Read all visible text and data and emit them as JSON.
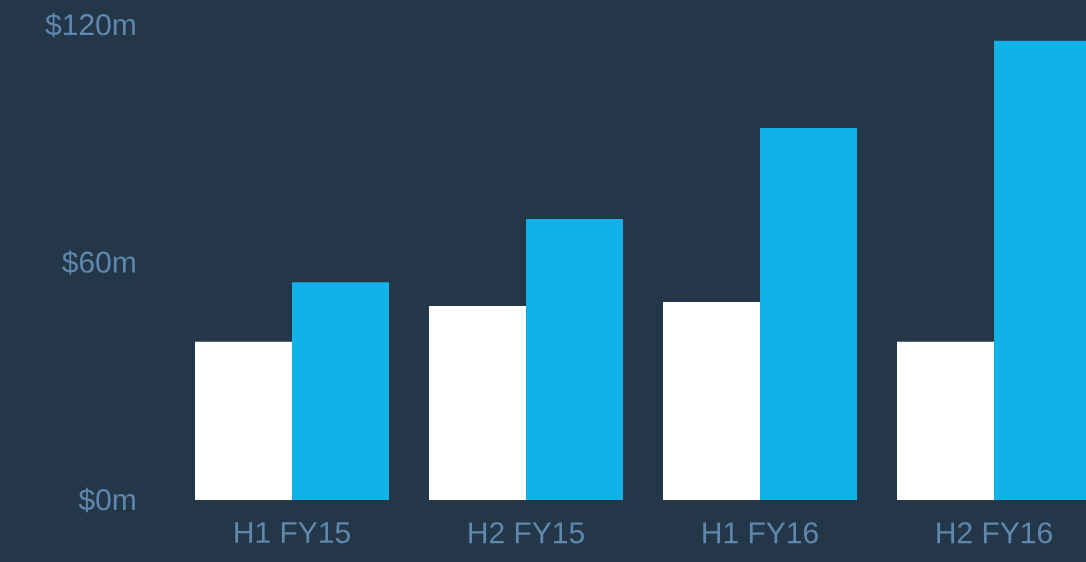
{
  "chart_data": {
    "type": "bar",
    "categories": [
      "H1 FY15",
      "H2 FY15",
      "H1 FY16",
      "H2 FY16"
    ],
    "series": [
      {
        "color": "#ffffff",
        "values": [
          40,
          49,
          50,
          40
        ]
      },
      {
        "color": "#12b2e8",
        "values": [
          55,
          71,
          94,
          116
        ]
      }
    ],
    "ylim": [
      0,
      120
    ],
    "yticks": [
      {
        "value": 0,
        "label": "$0m"
      },
      {
        "value": 60,
        "label": "$60m"
      },
      {
        "value": 120,
        "label": "$120m"
      }
    ],
    "grid": false
  }
}
